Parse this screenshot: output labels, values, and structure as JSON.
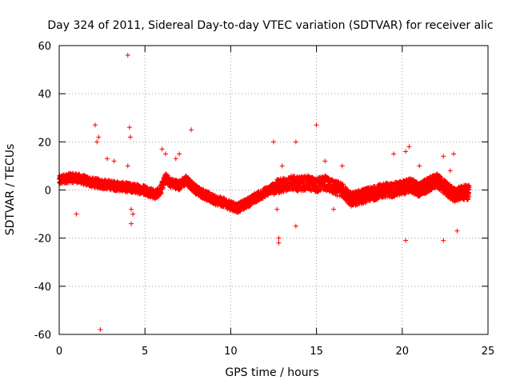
{
  "chart_data": {
    "type": "scatter",
    "title": "Day 324 of 2011, Sidereal Day-to-day VTEC variation (SDTVAR) for receiver alic",
    "xlabel": "GPS time / hours",
    "ylabel": "SDTVAR / TECUs",
    "xlim": [
      0,
      25
    ],
    "ylim": [
      -60,
      60
    ],
    "x_ticks": [
      0,
      5,
      10,
      15,
      20,
      25
    ],
    "y_ticks": [
      -60,
      -40,
      -20,
      0,
      20,
      40,
      60
    ],
    "grid": true,
    "marker": "+",
    "color": "#ff0000",
    "trend": [
      [
        0.0,
        4
      ],
      [
        0.5,
        5
      ],
      [
        1.0,
        5
      ],
      [
        1.5,
        4
      ],
      [
        2.0,
        3
      ],
      [
        2.5,
        2.5
      ],
      [
        3.0,
        2
      ],
      [
        3.5,
        1.5
      ],
      [
        4.0,
        1
      ],
      [
        4.5,
        0.5
      ],
      [
        5.0,
        0
      ],
      [
        5.3,
        -1
      ],
      [
        5.6,
        -2
      ],
      [
        5.9,
        0
      ],
      [
        6.2,
        5
      ],
      [
        6.5,
        3
      ],
      [
        7.0,
        2
      ],
      [
        7.4,
        4
      ],
      [
        7.7,
        2
      ],
      [
        8.0,
        0
      ],
      [
        8.5,
        -2
      ],
      [
        9.0,
        -4
      ],
      [
        9.5,
        -5
      ],
      [
        10.0,
        -6.5
      ],
      [
        10.4,
        -7.5
      ],
      [
        10.8,
        -6
      ],
      [
        11.5,
        -3
      ],
      [
        12.0,
        -1
      ],
      [
        12.5,
        1
      ],
      [
        13.0,
        2
      ],
      [
        13.5,
        3
      ],
      [
        14.0,
        2.5
      ],
      [
        14.5,
        3
      ],
      [
        15.0,
        2
      ],
      [
        15.5,
        3
      ],
      [
        16.0,
        1
      ],
      [
        16.5,
        0
      ],
      [
        17.0,
        -4
      ],
      [
        17.5,
        -3
      ],
      [
        18.0,
        -2
      ],
      [
        18.5,
        -1
      ],
      [
        19.0,
        0
      ],
      [
        19.5,
        0
      ],
      [
        20.0,
        1
      ],
      [
        20.5,
        2
      ],
      [
        21.0,
        0
      ],
      [
        21.5,
        2
      ],
      [
        22.0,
        4
      ],
      [
        22.5,
        1
      ],
      [
        23.0,
        -2
      ],
      [
        23.5,
        -1
      ],
      [
        23.9,
        -1
      ]
    ],
    "outliers": [
      [
        4.0,
        56
      ],
      [
        2.4,
        -58
      ],
      [
        2.1,
        27
      ],
      [
        4.1,
        26
      ],
      [
        4.15,
        22
      ],
      [
        2.3,
        22
      ],
      [
        2.2,
        20
      ],
      [
        6.0,
        17
      ],
      [
        7.7,
        25
      ],
      [
        12.5,
        20
      ],
      [
        13.8,
        20
      ],
      [
        15.0,
        27
      ],
      [
        19.5,
        15
      ],
      [
        20.2,
        16
      ],
      [
        20.4,
        18
      ],
      [
        23.0,
        15
      ],
      [
        22.4,
        14
      ],
      [
        12.8,
        -20
      ],
      [
        12.8,
        -22
      ],
      [
        13.8,
        -15
      ],
      [
        20.2,
        -21
      ],
      [
        22.4,
        -21
      ],
      [
        23.2,
        -17
      ],
      [
        1.0,
        -10
      ],
      [
        4.2,
        -14
      ],
      [
        4.3,
        -10
      ],
      [
        4.2,
        -8
      ],
      [
        12.7,
        -8
      ],
      [
        16.0,
        -8
      ],
      [
        6.2,
        15
      ],
      [
        7.0,
        15
      ],
      [
        6.8,
        13
      ],
      [
        2.8,
        13
      ],
      [
        3.2,
        12
      ],
      [
        4.0,
        10
      ],
      [
        16.5,
        10
      ],
      [
        15.5,
        12
      ],
      [
        13.0,
        10
      ],
      [
        21.0,
        10
      ],
      [
        22.8,
        8
      ]
    ]
  }
}
